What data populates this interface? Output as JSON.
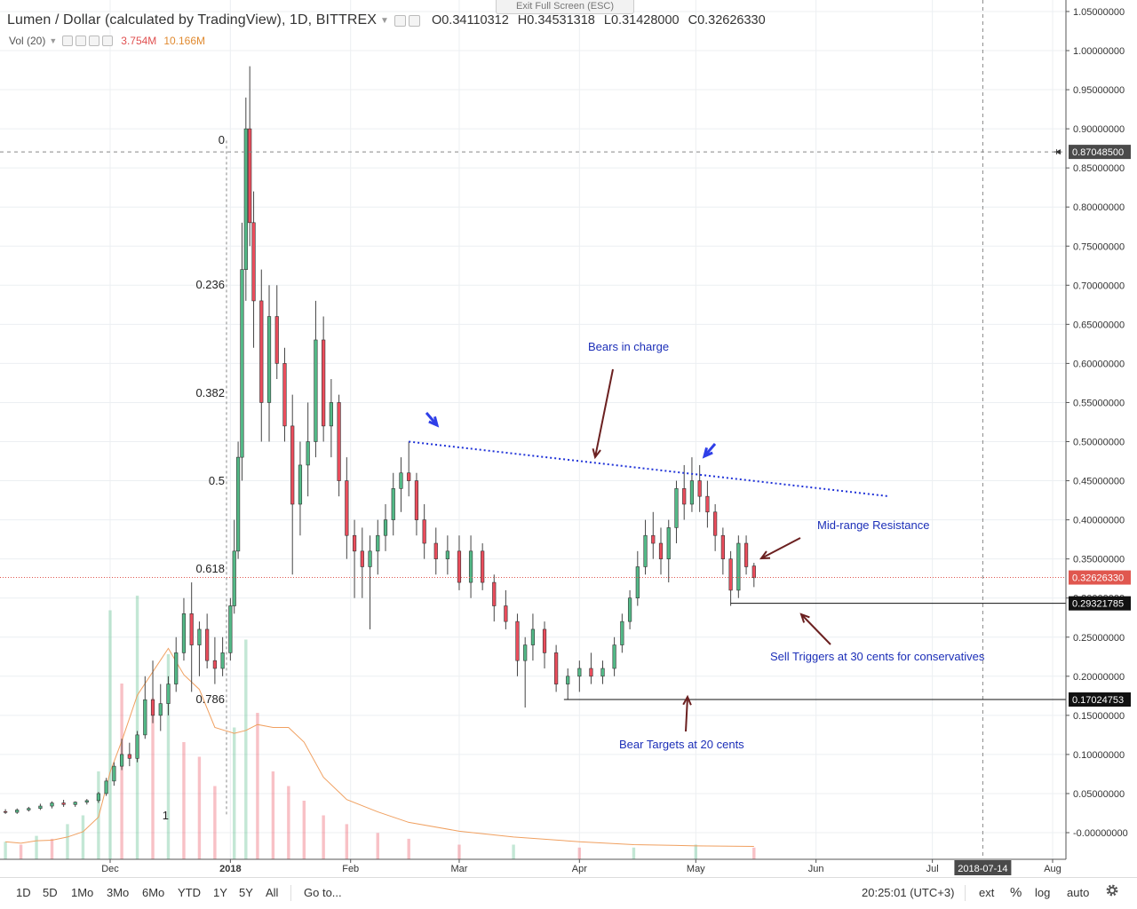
{
  "header": {
    "symbol": "Lumen / Dollar (calculated by TradingView), 1D, BITTREX",
    "open": "O0.34110312",
    "high": "H0.34531318",
    "low": "L0.31428000",
    "close": "C0.32626330",
    "exit_fullscreen": "Exit Full Screen (ESC)"
  },
  "volume_legend": {
    "label": "Vol (20)",
    "value1": "3.754M",
    "value2": "10.166M"
  },
  "toolbar": {
    "ranges": [
      "1D",
      "5D",
      "1Mo",
      "3Mo",
      "6Mo",
      "YTD",
      "1Y",
      "5Y",
      "All"
    ],
    "goto": "Go to...",
    "clock": "20:25:01 (UTC+3)",
    "ext": "ext",
    "percent": "%",
    "log": "log",
    "auto": "auto",
    "settings_icon": "gear-icon"
  },
  "annotations": {
    "bears_in_charge": "Bears in charge",
    "mid_range": "Mid-range Resistance",
    "sell_triggers": "Sell Triggers at 30 cents for conservatives",
    "bear_targets": "Bear Targets at 20 cents"
  },
  "colors": {
    "bull": "#53b987",
    "bear": "#eb4d5c",
    "annotation": "#1c2fb8",
    "trendline": "#2033d8",
    "volume_ma": "#f0a060",
    "last_price": "#e0574f"
  },
  "chart_data": {
    "type": "candlestick",
    "interval": "1D",
    "exchange": "BITTREX",
    "y_axis_ticks": [
      "1.05000000",
      "1.00000000",
      "0.95000000",
      "0.90000000",
      "0.85000000",
      "0.80000000",
      "0.75000000",
      "0.70000000",
      "0.65000000",
      "0.60000000",
      "0.55000000",
      "0.50000000",
      "0.45000000",
      "0.40000000",
      "0.35000000",
      "0.30000000",
      "0.25000000",
      "0.20000000",
      "0.15000000",
      "0.10000000",
      "0.05000000",
      "-0.00000000"
    ],
    "ylim": [
      -0.03,
      1.06
    ],
    "x_axis_ticks": [
      {
        "label": "Dec",
        "date": "2017-12-01"
      },
      {
        "label": "2018",
        "date": "2018-01-01"
      },
      {
        "label": "Feb",
        "date": "2018-02-01"
      },
      {
        "label": "Mar",
        "date": "2018-03-01"
      },
      {
        "label": "Apr",
        "date": "2018-04-01"
      },
      {
        "label": "May",
        "date": "2018-05-01"
      },
      {
        "label": "Jun",
        "date": "2018-06-01"
      },
      {
        "label": "Jul",
        "date": "2018-07-01"
      },
      {
        "label": "2018-07-14",
        "date": "2018-07-14"
      },
      {
        "label": "Aug",
        "date": "2018-08-01"
      }
    ],
    "x_range": [
      "2017-11-04",
      "2018-08-05"
    ],
    "price_labels": [
      {
        "value": 0.870485,
        "label": "0.87048500",
        "style": "crosshair"
      },
      {
        "value": 0.3262633,
        "label": "0.32626330",
        "style": "last"
      },
      {
        "value": 0.29321785,
        "label": "0.29321785",
        "style": "line"
      },
      {
        "value": 0.17024753,
        "label": "0.17024753",
        "style": "line"
      }
    ],
    "crosshair": {
      "date": "2018-07-14",
      "price": 0.870485
    },
    "fibonacci": [
      {
        "label": "0",
        "value": 0.885
      },
      {
        "label": "0.236",
        "value": 0.7
      },
      {
        "label": "0.382",
        "value": 0.562
      },
      {
        "label": "0.5",
        "value": 0.45
      },
      {
        "label": "0.618",
        "value": 0.337
      },
      {
        "label": "0.786",
        "value": 0.17
      },
      {
        "label": "1",
        "value": 0.0
      }
    ],
    "trendline": {
      "start": [
        "2018-02-16",
        0.5
      ],
      "end": [
        "2018-06-20",
        0.43
      ]
    },
    "horizontal_lines": [
      {
        "start": "2018-05-10",
        "value": 0.29321785
      },
      {
        "start": "2018-03-28",
        "value": 0.17024753
      }
    ],
    "ohlc": [
      [
        "2017-11-04",
        0.027,
        0.03,
        0.024,
        0.026
      ],
      [
        "2017-11-07",
        0.026,
        0.031,
        0.024,
        0.029
      ],
      [
        "2017-11-10",
        0.029,
        0.033,
        0.027,
        0.031
      ],
      [
        "2017-11-13",
        0.031,
        0.037,
        0.029,
        0.034
      ],
      [
        "2017-11-16",
        0.034,
        0.04,
        0.031,
        0.038
      ],
      [
        "2017-11-19",
        0.038,
        0.042,
        0.033,
        0.036
      ],
      [
        "2017-11-22",
        0.036,
        0.04,
        0.033,
        0.039
      ],
      [
        "2017-11-25",
        0.039,
        0.043,
        0.036,
        0.041
      ],
      [
        "2017-11-28",
        0.041,
        0.052,
        0.038,
        0.05
      ],
      [
        "2017-11-30",
        0.05,
        0.07,
        0.047,
        0.066
      ],
      [
        "2017-12-02",
        0.066,
        0.09,
        0.06,
        0.085
      ],
      [
        "2017-12-04",
        0.085,
        0.12,
        0.08,
        0.1
      ],
      [
        "2017-12-06",
        0.1,
        0.115,
        0.085,
        0.095
      ],
      [
        "2017-12-08",
        0.095,
        0.13,
        0.09,
        0.125
      ],
      [
        "2017-12-10",
        0.125,
        0.2,
        0.12,
        0.17
      ],
      [
        "2017-12-12",
        0.17,
        0.22,
        0.14,
        0.15
      ],
      [
        "2017-12-14",
        0.15,
        0.19,
        0.13,
        0.165
      ],
      [
        "2017-12-16",
        0.165,
        0.2,
        0.15,
        0.19
      ],
      [
        "2017-12-18",
        0.19,
        0.25,
        0.18,
        0.23
      ],
      [
        "2017-12-20",
        0.23,
        0.3,
        0.22,
        0.28
      ],
      [
        "2017-12-22",
        0.28,
        0.32,
        0.18,
        0.24
      ],
      [
        "2017-12-24",
        0.24,
        0.27,
        0.2,
        0.26
      ],
      [
        "2017-12-26",
        0.26,
        0.28,
        0.21,
        0.22
      ],
      [
        "2017-12-28",
        0.22,
        0.25,
        0.19,
        0.21
      ],
      [
        "2017-12-30",
        0.21,
        0.25,
        0.2,
        0.23
      ],
      [
        "2018-01-01",
        0.23,
        0.3,
        0.22,
        0.29
      ],
      [
        "2018-01-02",
        0.29,
        0.4,
        0.28,
        0.36
      ],
      [
        "2018-01-03",
        0.36,
        0.5,
        0.35,
        0.48
      ],
      [
        "2018-01-04",
        0.48,
        0.78,
        0.45,
        0.72
      ],
      [
        "2018-01-05",
        0.72,
        0.94,
        0.68,
        0.9
      ],
      [
        "2018-01-06",
        0.9,
        0.98,
        0.75,
        0.78
      ],
      [
        "2018-01-07",
        0.78,
        0.82,
        0.62,
        0.68
      ],
      [
        "2018-01-09",
        0.68,
        0.72,
        0.5,
        0.55
      ],
      [
        "2018-01-11",
        0.55,
        0.7,
        0.5,
        0.66
      ],
      [
        "2018-01-13",
        0.66,
        0.7,
        0.58,
        0.6
      ],
      [
        "2018-01-15",
        0.6,
        0.62,
        0.5,
        0.52
      ],
      [
        "2018-01-17",
        0.52,
        0.56,
        0.33,
        0.42
      ],
      [
        "2018-01-19",
        0.42,
        0.5,
        0.38,
        0.47
      ],
      [
        "2018-01-21",
        0.47,
        0.55,
        0.43,
        0.5
      ],
      [
        "2018-01-23",
        0.5,
        0.68,
        0.48,
        0.63
      ],
      [
        "2018-01-25",
        0.63,
        0.66,
        0.5,
        0.52
      ],
      [
        "2018-01-27",
        0.52,
        0.58,
        0.48,
        0.55
      ],
      [
        "2018-01-29",
        0.55,
        0.56,
        0.43,
        0.45
      ],
      [
        "2018-01-31",
        0.45,
        0.48,
        0.35,
        0.38
      ],
      [
        "2018-02-02",
        0.38,
        0.4,
        0.3,
        0.36
      ],
      [
        "2018-02-04",
        0.36,
        0.39,
        0.3,
        0.34
      ],
      [
        "2018-02-06",
        0.34,
        0.38,
        0.26,
        0.36
      ],
      [
        "2018-02-08",
        0.36,
        0.4,
        0.33,
        0.38
      ],
      [
        "2018-02-10",
        0.38,
        0.42,
        0.36,
        0.4
      ],
      [
        "2018-02-12",
        0.4,
        0.46,
        0.38,
        0.44
      ],
      [
        "2018-02-14",
        0.44,
        0.48,
        0.41,
        0.46
      ],
      [
        "2018-02-16",
        0.46,
        0.5,
        0.43,
        0.45
      ],
      [
        "2018-02-18",
        0.45,
        0.46,
        0.38,
        0.4
      ],
      [
        "2018-02-20",
        0.4,
        0.42,
        0.35,
        0.37
      ],
      [
        "2018-02-23",
        0.37,
        0.39,
        0.33,
        0.35
      ],
      [
        "2018-02-26",
        0.35,
        0.38,
        0.33,
        0.36
      ],
      [
        "2018-03-01",
        0.36,
        0.38,
        0.31,
        0.32
      ],
      [
        "2018-03-04",
        0.32,
        0.38,
        0.3,
        0.36
      ],
      [
        "2018-03-07",
        0.36,
        0.37,
        0.31,
        0.32
      ],
      [
        "2018-03-10",
        0.32,
        0.33,
        0.27,
        0.29
      ],
      [
        "2018-03-13",
        0.29,
        0.31,
        0.26,
        0.27
      ],
      [
        "2018-03-16",
        0.27,
        0.28,
        0.2,
        0.22
      ],
      [
        "2018-03-18",
        0.22,
        0.25,
        0.16,
        0.24
      ],
      [
        "2018-03-20",
        0.24,
        0.28,
        0.22,
        0.26
      ],
      [
        "2018-03-23",
        0.26,
        0.27,
        0.21,
        0.23
      ],
      [
        "2018-03-26",
        0.23,
        0.24,
        0.18,
        0.19
      ],
      [
        "2018-03-29",
        0.19,
        0.21,
        0.17,
        0.2
      ],
      [
        "2018-04-01",
        0.2,
        0.22,
        0.18,
        0.21
      ],
      [
        "2018-04-04",
        0.21,
        0.23,
        0.19,
        0.2
      ],
      [
        "2018-04-07",
        0.2,
        0.22,
        0.19,
        0.21
      ],
      [
        "2018-04-10",
        0.21,
        0.25,
        0.2,
        0.24
      ],
      [
        "2018-04-12",
        0.24,
        0.28,
        0.23,
        0.27
      ],
      [
        "2018-04-14",
        0.27,
        0.31,
        0.26,
        0.3
      ],
      [
        "2018-04-16",
        0.3,
        0.36,
        0.29,
        0.34
      ],
      [
        "2018-04-18",
        0.34,
        0.4,
        0.33,
        0.38
      ],
      [
        "2018-04-20",
        0.38,
        0.41,
        0.35,
        0.37
      ],
      [
        "2018-04-22",
        0.37,
        0.39,
        0.33,
        0.35
      ],
      [
        "2018-04-24",
        0.35,
        0.4,
        0.32,
        0.39
      ],
      [
        "2018-04-26",
        0.39,
        0.45,
        0.37,
        0.44
      ],
      [
        "2018-04-28",
        0.44,
        0.47,
        0.4,
        0.42
      ],
      [
        "2018-04-30",
        0.42,
        0.48,
        0.41,
        0.45
      ],
      [
        "2018-05-02",
        0.45,
        0.47,
        0.41,
        0.43
      ],
      [
        "2018-05-04",
        0.43,
        0.45,
        0.39,
        0.41
      ],
      [
        "2018-05-06",
        0.41,
        0.42,
        0.36,
        0.38
      ],
      [
        "2018-05-08",
        0.38,
        0.39,
        0.33,
        0.35
      ],
      [
        "2018-05-10",
        0.35,
        0.36,
        0.29,
        0.31
      ],
      [
        "2018-05-12",
        0.31,
        0.38,
        0.3,
        0.37
      ],
      [
        "2018-05-14",
        0.37,
        0.38,
        0.33,
        0.34
      ],
      [
        "2018-05-16",
        0.341,
        0.345,
        0.314,
        0.326
      ]
    ],
    "volume": [
      [
        "2017-11-04",
        0.6
      ],
      [
        "2017-11-08",
        0.5
      ],
      [
        "2017-11-12",
        0.8
      ],
      [
        "2017-11-16",
        0.7
      ],
      [
        "2017-11-20",
        1.2
      ],
      [
        "2017-11-24",
        1.5
      ],
      [
        "2017-11-28",
        3.0
      ],
      [
        "2017-12-01",
        8.5
      ],
      [
        "2017-12-04",
        6.0
      ],
      [
        "2017-12-08",
        9.0
      ],
      [
        "2017-12-12",
        5.5
      ],
      [
        "2017-12-16",
        7.0
      ],
      [
        "2017-12-20",
        4.0
      ],
      [
        "2017-12-24",
        3.5
      ],
      [
        "2017-12-28",
        2.5
      ],
      [
        "2018-01-02",
        4.5
      ],
      [
        "2018-01-05",
        7.5
      ],
      [
        "2018-01-08",
        5.0
      ],
      [
        "2018-01-12",
        3.0
      ],
      [
        "2018-01-16",
        2.5
      ],
      [
        "2018-01-20",
        2.0
      ],
      [
        "2018-01-25",
        1.5
      ],
      [
        "2018-01-31",
        1.2
      ],
      [
        "2018-02-08",
        0.9
      ],
      [
        "2018-02-16",
        0.7
      ],
      [
        "2018-03-01",
        0.5
      ],
      [
        "2018-03-15",
        0.5
      ],
      [
        "2018-04-01",
        0.4
      ],
      [
        "2018-04-15",
        0.4
      ],
      [
        "2018-05-01",
        0.5
      ],
      [
        "2018-05-16",
        0.4
      ]
    ]
  }
}
